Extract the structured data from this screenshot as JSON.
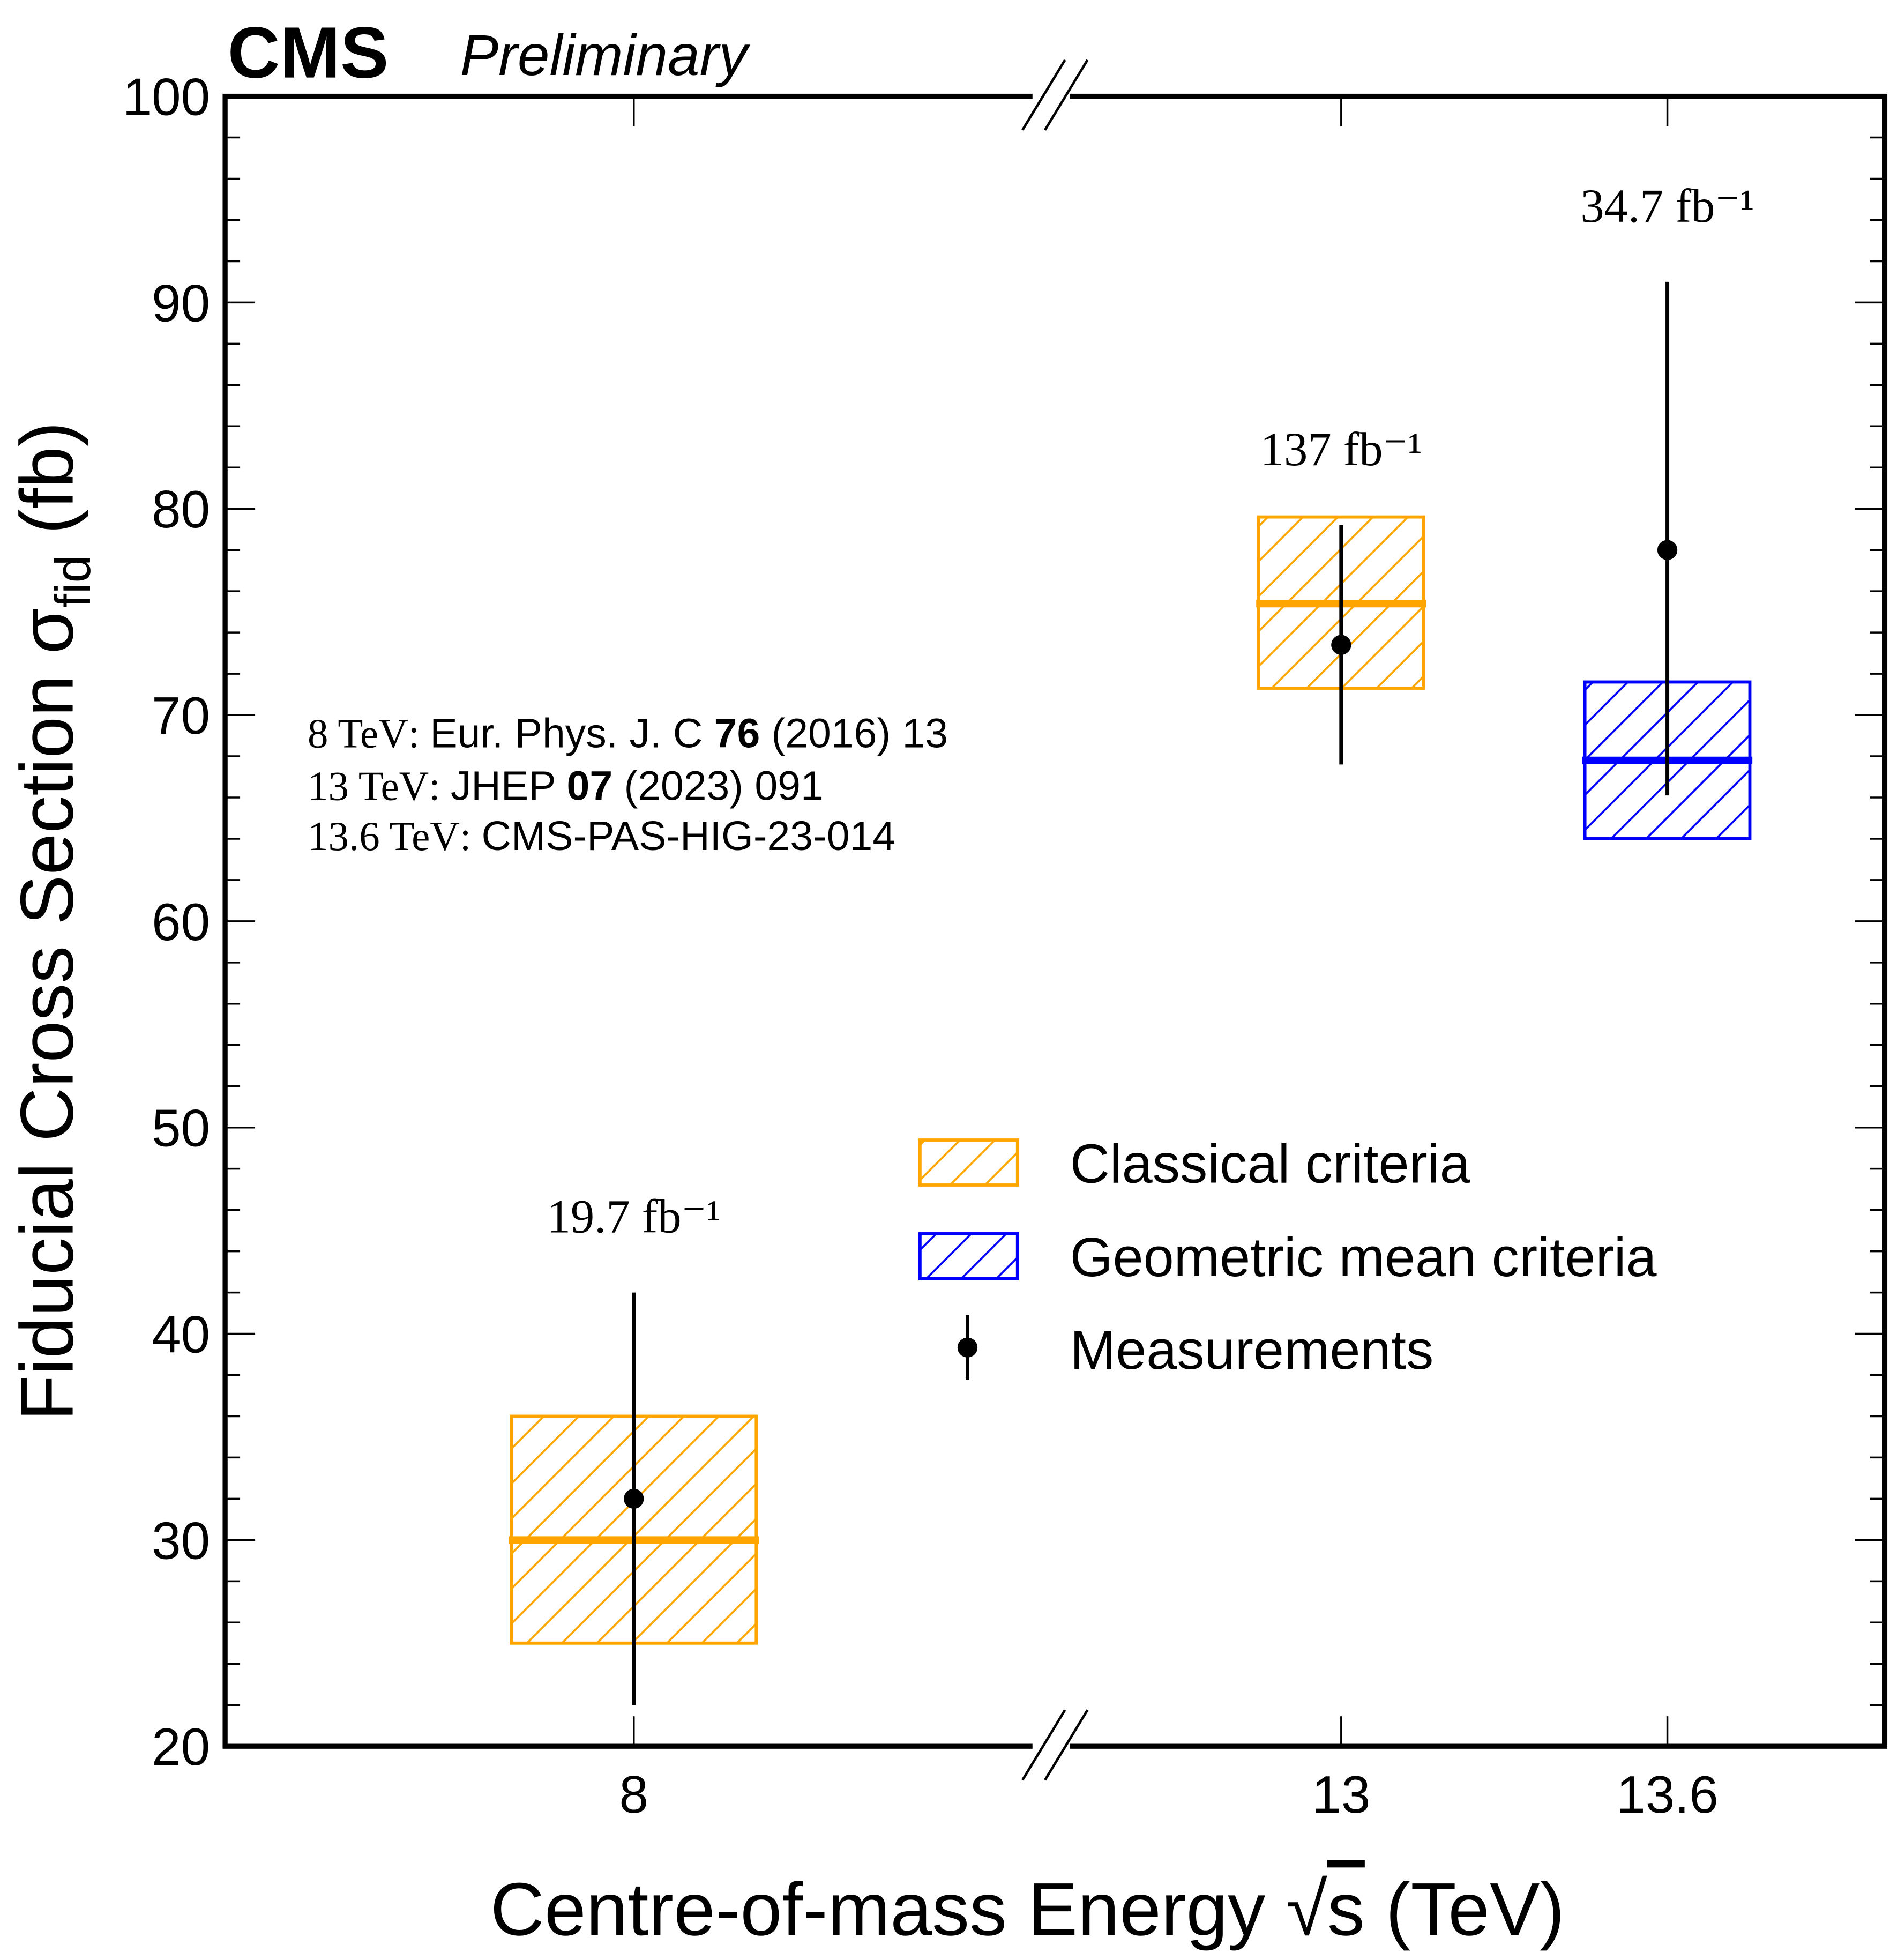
{
  "header": {
    "experiment": "CMS",
    "status": "Preliminary"
  },
  "references": [
    {
      "energy": "8 TeV",
      "prefix": "Eur. Phys. J. C ",
      "bold": "76",
      "suffix": " (2016) 13"
    },
    {
      "energy": "13 TeV",
      "prefix": "JHEP ",
      "bold": "07",
      "suffix": " (2023) 091"
    },
    {
      "energy": "13.6 TeV",
      "prefix": "CMS-PAS-HIG-23-014",
      "bold": "",
      "suffix": ""
    }
  ],
  "colors": {
    "classical": "#FFA500",
    "geometric": "#0000FF",
    "measurement": "#000000"
  },
  "chart_data": {
    "type": "scatter",
    "title": "CMS Preliminary",
    "xlabel": "Centre-of-mass Energy √s (TeV)",
    "ylabel": "Fiducial Cross Section σ_fid (fb)",
    "ylabel_main": "Fiducial Cross Section σ",
    "ylabel_sub": "fid",
    "ylabel_unit": " (fb)",
    "xlabel_main": "Centre-of-mass Energy ",
    "xlabel_var": "s",
    "xlabel_unit": " (TeV)",
    "ylim": [
      20,
      100
    ],
    "yticks": [
      20,
      30,
      40,
      50,
      60,
      70,
      80,
      90,
      100
    ],
    "yticks_labels": [
      "20",
      "30",
      "40",
      "50",
      "60",
      "70",
      "80",
      "90",
      "100"
    ],
    "categories": [
      "8",
      "13",
      "13.6"
    ],
    "axis_break": true,
    "grid": false,
    "legend_position": "center-right",
    "legend": [
      "Classical criteria",
      "Geometric mean criteria",
      "Measurements"
    ],
    "lumi_labels": [
      "19.7 fb⁻¹",
      "137 fb⁻¹",
      "34.7 fb⁻¹"
    ],
    "measurements": [
      {
        "energy": "8",
        "value": 32.0,
        "err_low": 22.0,
        "err_high": 42.0
      },
      {
        "energy": "13",
        "value": 73.4,
        "err_low": 67.6,
        "err_high": 79.2
      },
      {
        "energy": "13.6",
        "value": 78.0,
        "err_low": 66.1,
        "err_high": 91.0
      }
    ],
    "predictions": [
      {
        "energy": "8",
        "criteria": "Classical criteria",
        "central": 30.0,
        "low": 25.0,
        "high": 36.0
      },
      {
        "energy": "13",
        "criteria": "Classical criteria",
        "central": 75.4,
        "low": 71.3,
        "high": 79.6
      },
      {
        "energy": "13.6",
        "criteria": "Geometric mean criteria",
        "central": 67.8,
        "low": 64.0,
        "high": 71.6
      }
    ]
  }
}
